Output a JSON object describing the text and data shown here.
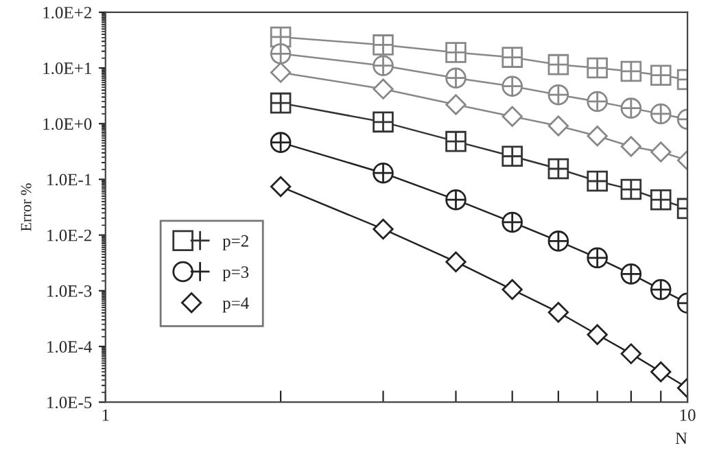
{
  "chart_data": {
    "type": "line",
    "xlabel": "N",
    "ylabel": "Error %",
    "log": "xy",
    "x": [
      2,
      3,
      4,
      5,
      6,
      7,
      8,
      9,
      10
    ],
    "xlim": [
      1,
      10
    ],
    "xticks": [
      1,
      {
        "value": 2,
        "label": null
      },
      {
        "value": 3,
        "label": null
      },
      {
        "value": 4,
        "label": null
      },
      {
        "value": 5,
        "label": null
      },
      {
        "value": 6,
        "label": null
      },
      {
        "value": 7,
        "label": null
      },
      {
        "value": 8,
        "label": null
      },
      {
        "value": 9,
        "label": null
      },
      10
    ],
    "ylim": [
      1e-05,
      100
    ],
    "yticks": [
      {
        "value": 1e-05,
        "label": "1.0E-5"
      },
      {
        "value": 0.0001,
        "label": "1.0E-4"
      },
      {
        "value": 0.001,
        "label": "1.0E-3"
      },
      {
        "value": 0.01,
        "label": "1.0E-2"
      },
      {
        "value": 0.1,
        "label": "1.0E-1"
      },
      {
        "value": 1,
        "label": "1.0E+0"
      },
      {
        "value": 10,
        "label": "1.0E+1"
      },
      {
        "value": 100,
        "label": "1.0E+2"
      }
    ],
    "grid": false,
    "legend": "left",
    "line_style": "solid",
    "series": [
      {
        "color": "#888888",
        "marker": "square",
        "values": [
          36,
          26,
          19,
          15.5,
          11.5,
          10,
          8.7,
          7.4,
          6.2
        ]
      },
      {
        "color": "#888888",
        "marker": "circle",
        "values": [
          18,
          11,
          6.6,
          4.7,
          3.3,
          2.5,
          1.9,
          1.5,
          1.2
        ]
      },
      {
        "color": "#888888",
        "marker": "diamond",
        "values": [
          8.3,
          4.2,
          2.2,
          1.35,
          0.91,
          0.6,
          0.39,
          0.31,
          0.22
        ]
      },
      {
        "name": "p=2",
        "color": "#333333",
        "marker": "square",
        "values": [
          2.35,
          1.07,
          0.48,
          0.26,
          0.155,
          0.093,
          0.066,
          0.043,
          0.03
        ]
      },
      {
        "name": "p=3",
        "color": "#222222",
        "marker": "circle",
        "values": [
          0.46,
          0.13,
          0.043,
          0.017,
          0.0078,
          0.0039,
          0.002,
          0.00105,
          0.0006
        ]
      },
      {
        "name": "p=4",
        "color": "#222222",
        "marker": "diamond",
        "values": [
          0.074,
          0.0128,
          0.0033,
          0.00105,
          0.00041,
          0.000163,
          7.4e-05,
          3.5e-05,
          1.8e-05
        ]
      }
    ]
  }
}
